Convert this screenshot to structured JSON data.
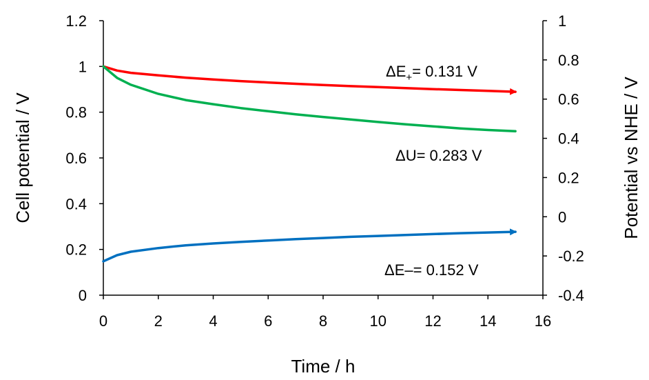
{
  "chart_data": {
    "type": "line",
    "title": "",
    "xlabel": "Time / h",
    "ylabel_left": "Cell potential / V",
    "ylabel_right": "Potential vs NHE / V",
    "xlim": [
      0,
      16
    ],
    "ylim_left": [
      0,
      1.2
    ],
    "ylim_right": [
      -0.4,
      1
    ],
    "x_ticks": [
      "0",
      "2",
      "4",
      "6",
      "8",
      "10",
      "12",
      "14",
      "16"
    ],
    "y_left_ticks": [
      "0",
      "0.2",
      "0.4",
      "0.6",
      "0.8",
      "1",
      "1.2"
    ],
    "y_right_ticks": [
      "-0.4",
      "-0.2",
      "0",
      "0.2",
      "0.4",
      "0.6",
      "0.8",
      "1"
    ],
    "grid": false,
    "series": [
      {
        "color": "#ff0000",
        "axis": "left",
        "arrow_end": true,
        "x": [
          0,
          0.5,
          1,
          2,
          3,
          4,
          5,
          6,
          7,
          8,
          9,
          10,
          11,
          12,
          13,
          14,
          15
        ],
        "values": [
          1.0,
          0.982,
          0.972,
          0.961,
          0.951,
          0.943,
          0.936,
          0.93,
          0.924,
          0.919,
          0.914,
          0.91,
          0.905,
          0.901,
          0.897,
          0.893,
          0.889
        ]
      },
      {
        "color": "#00b050",
        "axis": "left",
        "arrow_end": false,
        "x": [
          0,
          0.5,
          1,
          2,
          3,
          4,
          5,
          6,
          7,
          8,
          9,
          10,
          11,
          12,
          13,
          14,
          15
        ],
        "values": [
          1.0,
          0.95,
          0.92,
          0.88,
          0.853,
          0.835,
          0.818,
          0.804,
          0.791,
          0.779,
          0.768,
          0.757,
          0.747,
          0.738,
          0.729,
          0.722,
          0.717
        ]
      },
      {
        "color": "#0070c0",
        "axis": "left",
        "arrow_end": true,
        "x": [
          0,
          0.5,
          1,
          2,
          3,
          4,
          5,
          6,
          7,
          8,
          9,
          10,
          11,
          12,
          13,
          14,
          15
        ],
        "values": [
          0.148,
          0.175,
          0.19,
          0.206,
          0.218,
          0.226,
          0.233,
          0.239,
          0.245,
          0.25,
          0.255,
          0.259,
          0.263,
          0.267,
          0.271,
          0.274,
          0.277
        ]
      }
    ],
    "annotations": [
      {
        "text": "ΔE",
        "sub": "+",
        "rest": "= 0.131 V",
        "color": "#ff0000"
      },
      {
        "text": "ΔU= 0.283 V",
        "sub": "",
        "rest": "",
        "color": "#00b050"
      },
      {
        "text": "ΔE",
        "sub": "–",
        "rest": "= 0.152 V",
        "color": "#0070c0"
      }
    ]
  }
}
